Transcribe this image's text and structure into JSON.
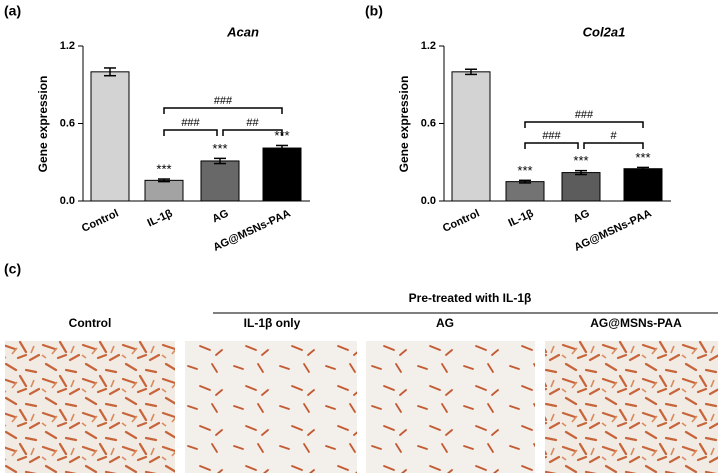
{
  "chart_data": [
    {
      "type": "bar",
      "panel_label": "(a)",
      "title": "Acan",
      "ylabel": "Gene  expression",
      "categories": [
        "Control",
        "IL-1β",
        "AG",
        "AG@MSNs-PAA"
      ],
      "values": [
        1.0,
        0.16,
        0.31,
        0.41
      ],
      "errors": [
        0.03,
        0.01,
        0.02,
        0.02
      ],
      "colors": [
        "#d3d3d3",
        "#a3a3a3",
        "#686868",
        "#000000"
      ],
      "ylim": [
        0,
        1.2
      ],
      "yticks": [
        {
          "value": 0,
          "label": "0.0"
        },
        0.6,
        1.2
      ],
      "significance": [
        "***",
        "***",
        "***"
      ],
      "comparisons": [
        "###",
        "###",
        "##"
      ]
    },
    {
      "type": "bar",
      "panel_label": "(b)",
      "title": "Col2a1",
      "ylabel": "Gene  expression",
      "categories": [
        "Control",
        "IL-1β",
        "AG",
        "AG@MSNs-PAA"
      ],
      "values": [
        1.0,
        0.15,
        0.22,
        0.25
      ],
      "errors": [
        0.02,
        0.01,
        0.015,
        0.01
      ],
      "colors": [
        "#d3d3d3",
        "#737373",
        "#5c5c5c",
        "#000000"
      ],
      "ylim": [
        0,
        1.2
      ],
      "yticks": [
        {
          "value": 0,
          "label": "0.0"
        },
        0.6,
        1.2
      ],
      "significance": [
        "***",
        "***",
        "***"
      ],
      "comparisons": [
        "###",
        "###",
        "#"
      ]
    }
  ],
  "panel_c": {
    "label": "(c)",
    "header": "Pre-treated with IL-1β",
    "captions": [
      "Control",
      "IL-1β only",
      "AG",
      "AG@MSNs-PAA"
    ]
  }
}
